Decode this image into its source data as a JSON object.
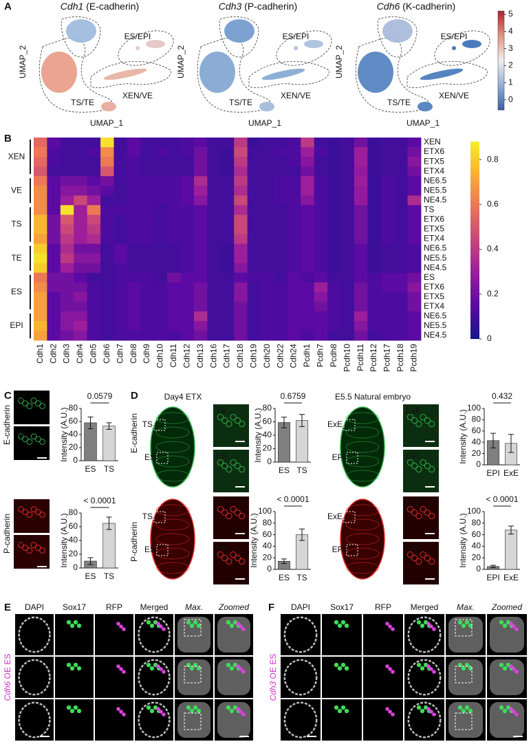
{
  "panel_labels": [
    "A",
    "B",
    "C",
    "D",
    "E",
    "F"
  ],
  "umap": {
    "plots": [
      {
        "gene": "Cdh1",
        "protein": " (E-cadherin)"
      },
      {
        "gene": "Cdh3",
        "protein": " (P-cadherin)"
      },
      {
        "gene": "Cdh6",
        "protein": " (K-cadherin)"
      }
    ],
    "clusters": [
      {
        "name": "ES/EPI",
        "color": "#e0302c"
      },
      {
        "name": "XEN/VE",
        "color": "#3aa64a"
      },
      {
        "name": "TS/TE",
        "color": "#3535b0"
      }
    ],
    "x_label": "UMAP_1",
    "y_label": "UMAP_2",
    "colorbar": {
      "lim": [
        -0.6,
        5.2
      ],
      "ticks": [
        0,
        1,
        2,
        3,
        4,
        5
      ],
      "colors": [
        "#3b5fa8",
        "#8fb0d8",
        "#f2f0ee",
        "#e49480",
        "#b4202f"
      ]
    }
  },
  "chart_data": [
    {
      "type": "heatmap",
      "x": [
        "Cdh1",
        "Cdh2",
        "Cdh3",
        "Cdh4",
        "Cdh5",
        "Cdh6",
        "Cdh7",
        "Cdh8",
        "Cdh9",
        "Cdh10",
        "Cdh11",
        "Cdh12",
        "Cdh13",
        "Cdh16",
        "Cdh17",
        "Cdh18",
        "Cdh19",
        "Cdh20",
        "Cdh22",
        "Cdh24",
        "Pcdh1",
        "Pcdh7",
        "Pcdh8",
        "Pcdh10",
        "Pcdh11",
        "Pcdh12",
        "Pcdh17",
        "Pcdh18",
        "Pcdh19"
      ],
      "zlim": [
        0,
        0.88
      ],
      "zticks": [
        0,
        0.2,
        0.4,
        0.6,
        0.8
      ],
      "colormap": [
        "#15168c",
        "#5a0aa3",
        "#9a1c9c",
        "#c8457a",
        "#ea7457",
        "#fbae34",
        "#f4ee2a"
      ],
      "groups": [
        {
          "name": "XEN",
          "color": "#3aa64a",
          "rows": [
            "XEN",
            "ETX6",
            "ETX5",
            "ETX4"
          ],
          "values": [
            [
              0.55,
              0.15,
              0.1,
              0.1,
              0.1,
              0.85,
              0.1,
              0.15,
              0.1,
              0.1,
              0.1,
              0.12,
              0.15,
              0.1,
              0.1,
              0.4,
              0.08,
              0.1,
              0.1,
              0.12,
              0.4,
              0.1,
              0.08,
              0.1,
              0.2,
              0.08,
              0.1,
              0.1,
              0.15
            ],
            [
              0.6,
              0.12,
              0.1,
              0.1,
              0.12,
              0.65,
              0.1,
              0.15,
              0.1,
              0.12,
              0.1,
              0.12,
              0.2,
              0.1,
              0.08,
              0.45,
              0.1,
              0.1,
              0.12,
              0.12,
              0.3,
              0.12,
              0.08,
              0.1,
              0.3,
              0.08,
              0.1,
              0.1,
              0.2
            ],
            [
              0.55,
              0.12,
              0.1,
              0.1,
              0.1,
              0.6,
              0.1,
              0.12,
              0.1,
              0.1,
              0.1,
              0.1,
              0.2,
              0.1,
              0.08,
              0.4,
              0.1,
              0.1,
              0.1,
              0.12,
              0.25,
              0.1,
              0.08,
              0.1,
              0.3,
              0.08,
              0.1,
              0.1,
              0.25
            ],
            [
              0.5,
              0.1,
              0.1,
              0.1,
              0.1,
              0.5,
              0.1,
              0.12,
              0.1,
              0.1,
              0.1,
              0.1,
              0.2,
              0.1,
              0.08,
              0.35,
              0.1,
              0.1,
              0.1,
              0.1,
              0.2,
              0.1,
              0.08,
              0.1,
              0.28,
              0.08,
              0.1,
              0.1,
              0.2
            ]
          ]
        },
        {
          "name": "VE",
          "color": "#3aa64a",
          "rows": [
            "NE6.5",
            "NE5.5",
            "NE4.5"
          ],
          "values": [
            [
              0.6,
              0.15,
              0.2,
              0.2,
              0.15,
              0.2,
              0.1,
              0.12,
              0.12,
              0.12,
              0.12,
              0.15,
              0.35,
              0.1,
              0.1,
              0.4,
              0.1,
              0.1,
              0.12,
              0.12,
              0.3,
              0.12,
              0.08,
              0.1,
              0.3,
              0.08,
              0.12,
              0.1,
              0.15
            ],
            [
              0.65,
              0.15,
              0.25,
              0.25,
              0.2,
              0.15,
              0.1,
              0.12,
              0.12,
              0.12,
              0.12,
              0.15,
              0.3,
              0.1,
              0.1,
              0.35,
              0.1,
              0.1,
              0.12,
              0.12,
              0.3,
              0.12,
              0.08,
              0.1,
              0.28,
              0.08,
              0.12,
              0.1,
              0.15
            ],
            [
              0.65,
              0.15,
              0.3,
              0.45,
              0.3,
              0.1,
              0.1,
              0.12,
              0.12,
              0.12,
              0.12,
              0.15,
              0.25,
              0.1,
              0.1,
              0.45,
              0.1,
              0.1,
              0.12,
              0.12,
              0.25,
              0.12,
              0.08,
              0.1,
              0.28,
              0.08,
              0.12,
              0.1,
              0.35
            ]
          ]
        },
        {
          "name": "TS",
          "color": "#2f7fc8",
          "rows": [
            "TS",
            "ETX6",
            "ETX5",
            "ETX4"
          ],
          "values": [
            [
              0.65,
              0.15,
              0.85,
              0.3,
              0.6,
              0.12,
              0.12,
              0.12,
              0.12,
              0.1,
              0.12,
              0.12,
              0.15,
              0.1,
              0.1,
              0.35,
              0.1,
              0.1,
              0.1,
              0.12,
              0.15,
              0.12,
              0.08,
              0.1,
              0.2,
              0.08,
              0.12,
              0.1,
              0.15
            ],
            [
              0.75,
              0.2,
              0.5,
              0.3,
              0.45,
              0.12,
              0.1,
              0.12,
              0.12,
              0.1,
              0.12,
              0.12,
              0.15,
              0.1,
              0.1,
              0.45,
              0.1,
              0.1,
              0.1,
              0.12,
              0.15,
              0.12,
              0.08,
              0.1,
              0.2,
              0.08,
              0.12,
              0.1,
              0.15
            ],
            [
              0.75,
              0.2,
              0.45,
              0.3,
              0.4,
              0.12,
              0.1,
              0.12,
              0.12,
              0.1,
              0.12,
              0.12,
              0.15,
              0.1,
              0.1,
              0.45,
              0.1,
              0.1,
              0.1,
              0.12,
              0.15,
              0.12,
              0.08,
              0.1,
              0.2,
              0.08,
              0.12,
              0.1,
              0.15
            ],
            [
              0.7,
              0.2,
              0.4,
              0.3,
              0.35,
              0.12,
              0.1,
              0.12,
              0.12,
              0.1,
              0.12,
              0.12,
              0.15,
              0.1,
              0.1,
              0.4,
              0.1,
              0.1,
              0.1,
              0.12,
              0.15,
              0.12,
              0.08,
              0.1,
              0.2,
              0.08,
              0.12,
              0.1,
              0.15
            ]
          ]
        },
        {
          "name": "TE",
          "color": "#2f7fc8",
          "rows": [
            "NE6.5",
            "NE5.5",
            "NE4.5"
          ],
          "values": [
            [
              0.8,
              0.15,
              0.35,
              0.2,
              0.2,
              0.1,
              0.15,
              0.1,
              0.1,
              0.1,
              0.1,
              0.12,
              0.15,
              0.1,
              0.08,
              0.3,
              0.1,
              0.1,
              0.1,
              0.12,
              0.15,
              0.12,
              0.08,
              0.1,
              0.15,
              0.08,
              0.1,
              0.1,
              0.12
            ],
            [
              0.85,
              0.15,
              0.4,
              0.25,
              0.25,
              0.1,
              0.15,
              0.1,
              0.1,
              0.1,
              0.1,
              0.12,
              0.15,
              0.1,
              0.08,
              0.3,
              0.1,
              0.1,
              0.1,
              0.12,
              0.15,
              0.12,
              0.08,
              0.1,
              0.15,
              0.08,
              0.1,
              0.1,
              0.12
            ],
            [
              0.8,
              0.15,
              0.3,
              0.2,
              0.2,
              0.1,
              0.12,
              0.1,
              0.1,
              0.1,
              0.1,
              0.12,
              0.15,
              0.1,
              0.08,
              0.25,
              0.1,
              0.1,
              0.1,
              0.12,
              0.15,
              0.12,
              0.08,
              0.1,
              0.15,
              0.08,
              0.1,
              0.1,
              0.12
            ]
          ]
        },
        {
          "name": "ES",
          "color": "#e0302c",
          "rows": [
            "ES",
            "ETX6",
            "ETX5",
            "ETX4"
          ],
          "values": [
            [
              0.6,
              0.2,
              0.2,
              0.15,
              0.1,
              0.1,
              0.12,
              0.12,
              0.12,
              0.1,
              0.2,
              0.15,
              0.15,
              0.1,
              0.1,
              0.15,
              0.12,
              0.12,
              0.1,
              0.15,
              0.12,
              0.15,
              0.1,
              0.1,
              0.15,
              0.12,
              0.15,
              0.15,
              0.2
            ],
            [
              0.65,
              0.2,
              0.2,
              0.2,
              0.12,
              0.1,
              0.12,
              0.15,
              0.12,
              0.12,
              0.15,
              0.15,
              0.2,
              0.1,
              0.1,
              0.25,
              0.1,
              0.12,
              0.12,
              0.15,
              0.15,
              0.3,
              0.12,
              0.1,
              0.2,
              0.12,
              0.15,
              0.15,
              0.25
            ],
            [
              0.7,
              0.15,
              0.2,
              0.25,
              0.12,
              0.1,
              0.12,
              0.15,
              0.12,
              0.12,
              0.15,
              0.15,
              0.2,
              0.1,
              0.1,
              0.25,
              0.1,
              0.12,
              0.12,
              0.15,
              0.15,
              0.25,
              0.12,
              0.1,
              0.2,
              0.12,
              0.12,
              0.12,
              0.2
            ],
            [
              0.7,
              0.15,
              0.2,
              0.2,
              0.12,
              0.1,
              0.12,
              0.15,
              0.12,
              0.12,
              0.15,
              0.15,
              0.2,
              0.1,
              0.1,
              0.2,
              0.1,
              0.12,
              0.12,
              0.15,
              0.15,
              0.2,
              0.12,
              0.1,
              0.2,
              0.12,
              0.12,
              0.12,
              0.2
            ]
          ]
        },
        {
          "name": "EPI",
          "color": "#e0302c",
          "rows": [
            "NE6.5",
            "NE5.5",
            "NE4.5"
          ],
          "values": [
            [
              0.7,
              0.15,
              0.25,
              0.25,
              0.12,
              0.1,
              0.12,
              0.15,
              0.12,
              0.12,
              0.15,
              0.15,
              0.35,
              0.1,
              0.1,
              0.2,
              0.1,
              0.12,
              0.12,
              0.15,
              0.15,
              0.15,
              0.12,
              0.1,
              0.3,
              0.12,
              0.12,
              0.12,
              0.15
            ],
            [
              0.75,
              0.15,
              0.25,
              0.3,
              0.12,
              0.1,
              0.12,
              0.15,
              0.12,
              0.12,
              0.15,
              0.15,
              0.25,
              0.1,
              0.1,
              0.2,
              0.1,
              0.12,
              0.12,
              0.15,
              0.15,
              0.15,
              0.12,
              0.1,
              0.25,
              0.12,
              0.12,
              0.12,
              0.15
            ],
            [
              0.7,
              0.15,
              0.2,
              0.25,
              0.12,
              0.1,
              0.12,
              0.12,
              0.12,
              0.12,
              0.12,
              0.15,
              0.2,
              0.1,
              0.1,
              0.2,
              0.1,
              0.12,
              0.12,
              0.15,
              0.12,
              0.15,
              0.1,
              0.1,
              0.2,
              0.1,
              0.12,
              0.12,
              0.15
            ]
          ]
        }
      ]
    },
    {
      "type": "bar",
      "categories": [
        "ES",
        "TS"
      ],
      "values": [
        58,
        53
      ],
      "errors": [
        9,
        5
      ],
      "colors": [
        "#808080",
        "#d6d6d6"
      ],
      "ylabel": "Intensity (A.U.)",
      "ylim": [
        0,
        80
      ],
      "yticks": [
        0,
        20,
        40,
        60,
        80
      ],
      "annotation": "0.0579"
    },
    {
      "type": "bar",
      "categories": [
        "ES",
        "TS"
      ],
      "values": [
        10,
        65
      ],
      "errors": [
        5,
        9
      ],
      "colors": [
        "#808080",
        "#d6d6d6"
      ],
      "ylabel": "Intensity (A.U.)",
      "ylim": [
        0,
        80
      ],
      "yticks": [
        0,
        20,
        40,
        60,
        80
      ],
      "annotation": "< 0.0001"
    },
    {
      "type": "bar",
      "categories": [
        "ES",
        "TS"
      ],
      "values": [
        59,
        62
      ],
      "errors": [
        8,
        9
      ],
      "colors": [
        "#808080",
        "#d6d6d6"
      ],
      "ylabel": "Intensity (A.U.)",
      "ylim": [
        0,
        80
      ],
      "yticks": [
        0,
        20,
        40,
        60,
        80
      ],
      "annotation": "0.6759"
    },
    {
      "type": "bar",
      "categories": [
        "EPI",
        "ExE"
      ],
      "values": [
        43,
        38
      ],
      "errors": [
        13,
        16
      ],
      "colors": [
        "#808080",
        "#d6d6d6"
      ],
      "ylabel": "Intensity (A.U.)",
      "ylim": [
        0,
        100
      ],
      "yticks": [
        0,
        20,
        40,
        60,
        80,
        100
      ],
      "annotation": "0.432"
    },
    {
      "type": "bar",
      "categories": [
        "ES",
        "TS"
      ],
      "values": [
        14,
        60
      ],
      "errors": [
        4,
        10
      ],
      "colors": [
        "#808080",
        "#d6d6d6"
      ],
      "ylabel": "Intensity (A.U.)",
      "ylim": [
        0,
        100
      ],
      "yticks": [
        0,
        20,
        40,
        60,
        80,
        100
      ],
      "annotation": "< 0.0001"
    },
    {
      "type": "bar",
      "categories": [
        "EPI",
        "ExE"
      ],
      "values": [
        5,
        68
      ],
      "errors": [
        2,
        7
      ],
      "colors": [
        "#808080",
        "#d6d6d6"
      ],
      "ylabel": "Intensity (A.U.)",
      "ylim": [
        0,
        100
      ],
      "yticks": [
        0,
        20,
        40,
        60,
        80,
        100
      ],
      "annotation": "< 0.0001"
    }
  ],
  "microscopy": {
    "markers": [
      {
        "name": "E-cadherin",
        "color": "#2fb24a"
      },
      {
        "name": "P-cadherin",
        "color": "#e0302c"
      }
    ],
    "c_samples": [
      "ES",
      "TS"
    ],
    "d_conditions": [
      {
        "title": "Day4 ETX",
        "regions": [
          "TS",
          "ES"
        ]
      },
      {
        "title": "E5.5 Natural embryo",
        "regions": [
          "ExE",
          "EPI"
        ]
      }
    ],
    "channels": [
      {
        "name": "DAPI",
        "color": "#9a9a9a",
        "italic": false
      },
      {
        "name": "Sox17",
        "color": "#2fb24a",
        "italic": false
      },
      {
        "name": "RFP",
        "color": "#d040d0",
        "italic": false
      },
      {
        "name": "Merged",
        "color": "#000000",
        "italic": false
      },
      {
        "name": "Max.",
        "color": "#000000",
        "italic": true
      },
      {
        "name": "Zoomed",
        "color": "#000000",
        "italic": true
      }
    ],
    "conditions": [
      {
        "gene": "Cdh6",
        "suffix": " OE ES",
        "color": "#d030c8"
      },
      {
        "gene": "Cdh3",
        "suffix": " OE ES",
        "color": "#d030c8"
      }
    ]
  }
}
